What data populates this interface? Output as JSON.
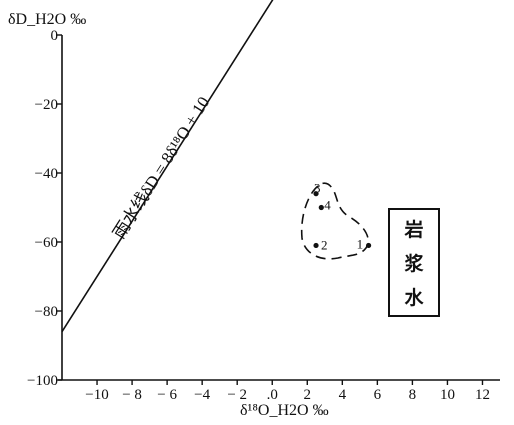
{
  "chart_data": {
    "type": "scatter",
    "title": "",
    "xlabel": "δ¹⁸O_H2O ‰",
    "ylabel": "δD_H2O ‰",
    "xlim": [
      -12,
      13
    ],
    "ylim": [
      -100,
      0
    ],
    "x_ticks": [
      -10,
      -8,
      -6,
      -4,
      -2,
      0,
      2,
      4,
      6,
      8,
      10,
      12
    ],
    "x_tick_labels": [
      "−10",
      "− 8",
      "− 6",
      "−4",
      "− 2",
      ".0",
      "2",
      "4",
      "6",
      "8",
      "10",
      "12"
    ],
    "y_ticks": [
      0,
      -20,
      -40,
      -60,
      -80,
      -100
    ],
    "y_tick_labels": [
      "0",
      "−20",
      "−40",
      "−60",
      "−80",
      "−100"
    ],
    "grid": false,
    "points": [
      {
        "label": "1",
        "x": 5.5,
        "y": -61
      },
      {
        "label": "2",
        "x": 2.5,
        "y": -61
      },
      {
        "label": "3",
        "x": 2.5,
        "y": -46
      },
      {
        "label": "4",
        "x": 2.8,
        "y": -50
      }
    ],
    "reference_line": {
      "label": "雨水线δD = 8δ¹⁸O + 10",
      "slope": 8,
      "intercept": 10,
      "x_range": [
        -12,
        2.4
      ]
    },
    "annotation_box": {
      "text": "岩浆水"
    }
  }
}
